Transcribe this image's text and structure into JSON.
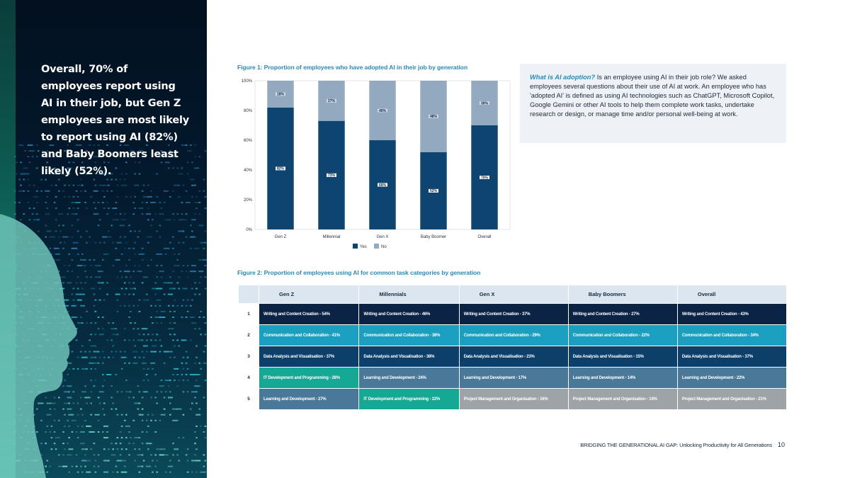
{
  "headline": "Overall, 70% of employees report using AI in their job, but Gen Z employees are most likely to report using AI (82%) and Baby Boomers least likely (52%).",
  "figure1_title": "Figure 1: Proportion of employees who have adopted AI in their job by generation",
  "figure2_title": "Figure 2: Proportion of employees using AI for common task categories by generation",
  "infobox": {
    "question": "What is AI adoption?",
    "text": " Is an employee using AI in their job role? We asked employees several questions about their use of AI at work. An employee who has 'adopted AI' is defined as using AI technologies such as ChatGPT, Microsoft Copilot, Google Gemini or other AI tools to help them complete work tasks, undertake research or design, or manage time and/or personal well-being at work."
  },
  "colors": {
    "yes": "#0d4570",
    "no": "#93a9c0",
    "accent": "#2a8ab8"
  },
  "chart_data": {
    "type": "bar",
    "stacked": true,
    "title": "Figure 1: Proportion of employees who have adopted AI in their job by generation",
    "categories": [
      "Gen Z",
      "Millennial",
      "Gen X",
      "Baby Boomer",
      "Overall"
    ],
    "series": [
      {
        "name": "Yes",
        "values": [
          82,
          73,
          60,
          52,
          70
        ],
        "labels": [
          "82%",
          "73%",
          "60%",
          "52%",
          "70%"
        ]
      },
      {
        "name": "No",
        "values": [
          18,
          27,
          40,
          48,
          30
        ],
        "labels": [
          "18%",
          "27%",
          "40%",
          "48%",
          "30%"
        ]
      }
    ],
    "yticks": [
      "0%",
      "20%",
      "40%",
      "60%",
      "80%",
      "100%"
    ],
    "ylim": [
      0,
      100
    ],
    "legend": "bottom"
  },
  "task_table": {
    "headers": [
      "Gen Z",
      "Millennials",
      "Gen X",
      "Baby Boomers",
      "Overall"
    ],
    "rows": [
      {
        "rank": "1",
        "cells": [
          {
            "text": "Writing and Content Creation - 54%",
            "cat": "write"
          },
          {
            "text": "Writing and Content Creation - 46%",
            "cat": "write"
          },
          {
            "text": "Writing and Content Creation - 37%",
            "cat": "write"
          },
          {
            "text": "Writing and Content Creation - 27%",
            "cat": "write"
          },
          {
            "text": "Writing and Content Creation - 43%",
            "cat": "write"
          }
        ]
      },
      {
        "rank": "2",
        "cells": [
          {
            "text": "Communication and Collaboration - 41%",
            "cat": "comm"
          },
          {
            "text": "Communication and Collaboration - 36%",
            "cat": "comm"
          },
          {
            "text": "Communication and Collaboration - 29%",
            "cat": "comm"
          },
          {
            "text": "Communication and Collaboration - 22%",
            "cat": "comm"
          },
          {
            "text": "Communication and Collaboration - 34%",
            "cat": "comm"
          }
        ]
      },
      {
        "rank": "3",
        "cells": [
          {
            "text": "Data Analysis and Visualisation - 37%",
            "cat": "data"
          },
          {
            "text": "Data Analysis and Visualisation - 38%",
            "cat": "data"
          },
          {
            "text": "Data Analysis and Visualisation - 23%",
            "cat": "data"
          },
          {
            "text": "Data Analysis and Visualisation - 15%",
            "cat": "data"
          },
          {
            "text": "Data Analysis and Visualisation - 37%",
            "cat": "data"
          }
        ]
      },
      {
        "rank": "4",
        "cells": [
          {
            "text": "IT Development and Programming - 28%",
            "cat": "it"
          },
          {
            "text": "Learning and Development - 24%",
            "cat": "learn"
          },
          {
            "text": "Learning and Development - 17%",
            "cat": "learn"
          },
          {
            "text": "Learning and Development - 14%",
            "cat": "learn"
          },
          {
            "text": "Learning and Development - 22%",
            "cat": "learn"
          }
        ]
      },
      {
        "rank": "5",
        "cells": [
          {
            "text": "Learning and Development - 27%",
            "cat": "learn"
          },
          {
            "text": "IT Development and Programming - 22%",
            "cat": "it"
          },
          {
            "text": "Project Management and Organisation - 16%",
            "cat": "proj"
          },
          {
            "text": "Project Management and Organisation - 14%",
            "cat": "proj"
          },
          {
            "text": "Project Management and Organisation - 21%",
            "cat": "proj"
          }
        ]
      }
    ]
  },
  "footer": {
    "text": "BRIDGING THE GENERATIONAL AI GAP: Unlocking Productivity for All Generations",
    "page": "10"
  }
}
